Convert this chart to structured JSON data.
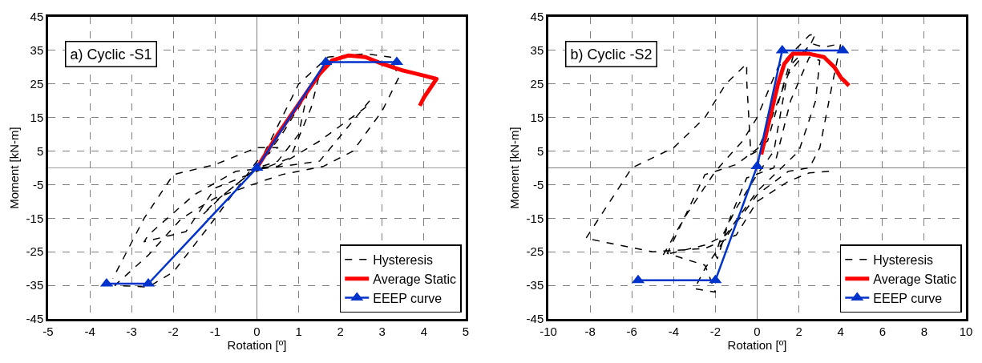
{
  "chart_data": [
    {
      "type": "line",
      "title": "a) Cyclic -S1",
      "xlabel": "Rotation [º]",
      "ylabel": "Moment [kN-m]",
      "xlim": [
        -5,
        5
      ],
      "xticks": [
        -5,
        -4,
        -3,
        -2,
        -1,
        0,
        1,
        2,
        3,
        4,
        5
      ],
      "ylim": [
        -45,
        45
      ],
      "yticks": [
        -45,
        -35,
        -25,
        -15,
        -5,
        5,
        15,
        25,
        35,
        45
      ],
      "grid": true,
      "legend": "bottom right",
      "ref_lines": [
        {
          "axis": "x",
          "value": 0,
          "color": "#808080"
        },
        {
          "axis": "y",
          "value": 0,
          "color": "#a0a0a0"
        }
      ],
      "series": [
        {
          "name": "Hysteresis",
          "color": "#000000",
          "line_style": "dashed",
          "marker": "none",
          "x": [
            0,
            0.6,
            1.2,
            1.0,
            0.5,
            0,
            -1,
            -1.3,
            -0.8,
            0,
            1.5,
            1.3,
            0.8,
            0.3,
            -1,
            -1.7,
            -2.7,
            -2.6,
            -1.5,
            -0.5,
            0.5,
            1.5,
            2.7,
            2.6,
            1.5,
            0.5,
            0,
            1,
            1.7,
            2.6,
            3.2,
            3.4,
            3.0,
            2.3,
            1.6,
            0.6,
            0,
            -1,
            -1.8,
            -2.6,
            -3.4,
            -2.6,
            -2,
            -1,
            0,
            0.5,
            0,
            -1,
            -2,
            -2.7,
            -3.45
          ],
          "values": [
            0,
            10,
            22,
            10,
            2,
            0,
            -10,
            -14,
            -8,
            0,
            28,
            18,
            3,
            0.5,
            -6,
            -19,
            -22,
            -20,
            -8,
            -1,
            0.3,
            2,
            20,
            18,
            8,
            0.5,
            0,
            25,
            33,
            34,
            33,
            27,
            17,
            5,
            0.5,
            -2,
            -4.5,
            -9,
            -15,
            -26,
            -35,
            -35.5,
            -31,
            -15,
            2,
            6,
            6,
            1,
            -2,
            -15,
            -33
          ]
        },
        {
          "name": "Average Static",
          "color": "#ff0000",
          "line_style": "solid",
          "marker": "none",
          "x": [
            0,
            0.5,
            1.0,
            1.5,
            1.8,
            2.2,
            2.6,
            3.0,
            3.5,
            4.0,
            4.3,
            4.0,
            3.9
          ],
          "values": [
            0,
            10,
            19,
            28,
            32,
            33.5,
            33,
            31,
            29,
            27.5,
            26.5,
            21,
            18.5
          ]
        },
        {
          "name": "EEEP curve",
          "color": "#0033cc",
          "line_style": "solid",
          "marker": "triangle",
          "x": [
            -3.6,
            -2.6,
            0,
            1.65,
            3.35
          ],
          "values": [
            -34.5,
            -34.5,
            0,
            31.5,
            31.5
          ]
        }
      ]
    },
    {
      "type": "line",
      "title": "b) Cyclic -S2",
      "xlabel": "Rotation [º]",
      "ylabel": "Moment [kN-m]",
      "xlim": [
        -10,
        10
      ],
      "xticks": [
        -10,
        -8,
        -6,
        -4,
        -2,
        0,
        2,
        4,
        6,
        8,
        10
      ],
      "ylim": [
        -45,
        45
      ],
      "yticks": [
        -45,
        -35,
        -25,
        -15,
        -5,
        5,
        15,
        25,
        35,
        45
      ],
      "grid": true,
      "legend": "bottom right",
      "ref_lines": [
        {
          "axis": "x",
          "value": 0,
          "color": "#808080"
        },
        {
          "axis": "y",
          "value": 0,
          "color": "#808080"
        }
      ],
      "series": [
        {
          "name": "Hysteresis",
          "color": "#000000",
          "line_style": "dashed",
          "marker": "none",
          "x": [
            0,
            0.6,
            1.2,
            1.8,
            1.4,
            0.8,
            0,
            -1,
            -1.8,
            -2,
            -1.9,
            -1.6,
            -1.3,
            -0.5,
            0.8,
            1.6,
            2.5,
            3,
            2.8,
            2,
            1,
            0,
            -1.5,
            -2.5,
            -4.5,
            -3.5,
            -2.5,
            -1,
            0.5,
            1.5,
            2.6,
            3.2,
            4,
            3.6,
            3,
            2.5,
            1.5,
            0,
            -1.2,
            -2.5,
            -3,
            -2,
            -2.5,
            -4.3,
            -3.5,
            -2,
            -0.7,
            0,
            1,
            2.5,
            2.8,
            2.5,
            1.5,
            0.7,
            0,
            -0.3,
            -0.5,
            -0.5,
            -1.5,
            -2.5,
            -4,
            -6,
            -8.2,
            -5,
            -2.5,
            -1,
            0,
            1.5,
            2.5,
            3.5
          ],
          "values": [
            0,
            15,
            30,
            35,
            26,
            5,
            -2,
            -12,
            -22,
            -26,
            -27,
            -21,
            -15,
            -3,
            0,
            20,
            33,
            32,
            20,
            5,
            -1,
            -7,
            -20,
            -23,
            -26,
            -15,
            -2,
            1,
            8,
            30,
            37,
            36,
            37,
            25,
            6,
            0,
            -1,
            -8,
            -18,
            -30,
            -36,
            -37,
            -29,
            -25.5,
            -15,
            -1,
            8,
            15,
            30,
            39.5,
            40,
            36,
            28,
            15,
            5,
            4,
            26,
            31,
            25,
            15,
            6,
            0,
            -21,
            -25,
            -24,
            -20,
            -10,
            -4,
            -1.5,
            -1
          ]
        },
        {
          "name": "Average Static",
          "color": "#ff0000",
          "line_style": "solid",
          "marker": "none",
          "x": [
            0.2,
            0.5,
            1.0,
            1.3,
            1.7,
            2.5,
            3.2,
            3.7,
            4.0,
            4.4
          ],
          "values": [
            4,
            12,
            25,
            31,
            34,
            34,
            33,
            30,
            27,
            24.5
          ]
        },
        {
          "name": "EEEP curve",
          "color": "#0033cc",
          "line_style": "solid",
          "marker": "triangle",
          "x": [
            -5.7,
            -2,
            0,
            1.2,
            4.1
          ],
          "values": [
            -33.5,
            -33.5,
            0.5,
            35,
            35
          ]
        }
      ]
    }
  ]
}
